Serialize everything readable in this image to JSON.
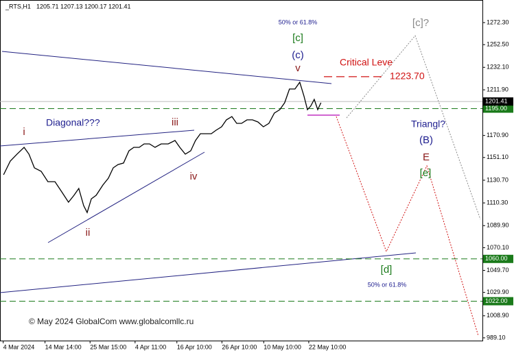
{
  "chart_data": {
    "type": "line",
    "title": "_RTS,H1",
    "ohlc_header": [
      "1205.71",
      "1207.13",
      "1200.17",
      "1201.41"
    ],
    "copyright": "© May 2024 GlobalCom www.globalcomllc.ru",
    "series": [
      {
        "color": "#000000",
        "x": [
          1.1,
          3.2,
          5.3,
          7.5,
          9.0,
          10.7,
          12.8,
          14.9,
          17.1,
          19.2,
          21.3,
          23.0,
          24.5,
          26.0,
          27.1,
          28.4,
          29.9,
          32.0,
          33.7,
          35.2,
          36.7,
          38.4,
          40.1,
          41.6,
          43.3,
          44.8,
          46.5,
          48.2,
          50.1,
          52.3,
          54.4,
          55.9,
          57.6,
          59.3,
          60.8,
          62.3,
          64.0,
          65.7,
          67.2,
          68.9,
          70.4,
          72.1,
          73.6,
          75.1,
          76.8,
          78.5,
          80.2,
          81.9,
          83.6,
          85.3,
          87.0,
          88.5,
          90.0,
          91.7,
          93.2,
          94.5,
          95.6,
          96.6,
          97.7,
          98.8,
          99.8
        ],
        "values": [
          1135.6,
          1147.9,
          1154.1,
          1160.2,
          1154.1,
          1141.8,
          1138.7,
          1129.4,
          1129.4,
          1120.2,
          1111.0,
          1117.1,
          1123.3,
          1107.9,
          1101.7,
          1114.0,
          1117.1,
          1126.4,
          1132.5,
          1141.8,
          1144.8,
          1146.1,
          1157.1,
          1160.2,
          1160.2,
          1163.3,
          1163.3,
          1160.2,
          1163.3,
          1163.3,
          1166.4,
          1160.2,
          1154.1,
          1157.1,
          1166.4,
          1172.5,
          1172.5,
          1172.5,
          1175.6,
          1178.7,
          1184.9,
          1187.9,
          1181.8,
          1181.8,
          1184.9,
          1184.9,
          1183.0,
          1178.7,
          1181.8,
          1191.0,
          1194.1,
          1200.3,
          1212.6,
          1212.6,
          1218.7,
          1206.4,
          1194.1,
          1197.2,
          1203.3,
          1194.1,
          1200.3
        ]
      }
    ],
    "xlim": [
      0,
      150
    ],
    "xticks": [
      {
        "value": 1,
        "label": "4 Mar 2024"
      },
      {
        "value": 14,
        "label": "14 Mar 14:00"
      },
      {
        "value": 28,
        "label": "25 Mar 15:00"
      },
      {
        "value": 42,
        "label": "4 Apr 11:00"
      },
      {
        "value": 55,
        "label": "16 Apr 10:00"
      },
      {
        "value": 69,
        "label": "26 Apr 10:00"
      },
      {
        "value": 82,
        "label": "10 May 10:00"
      },
      {
        "value": 96,
        "label": "22 May 10:00"
      }
    ],
    "ylim": [
      986.6,
      1292.6
    ],
    "yticks": [
      {
        "value": 1272.3,
        "label": "1272.30"
      },
      {
        "value": 1252.5,
        "label": "1252.50"
      },
      {
        "value": 1232.1,
        "label": "1232.10"
      },
      {
        "value": 1211.9,
        "label": "1211.90"
      },
      {
        "value": 1170.9,
        "label": "1170.90"
      },
      {
        "value": 1151.1,
        "label": "1151.10"
      },
      {
        "value": 1130.7,
        "label": "1130.70"
      },
      {
        "value": 1110.3,
        "label": "1110.30"
      },
      {
        "value": 1089.9,
        "label": "1089.90"
      },
      {
        "value": 1070.1,
        "label": "1070.10"
      },
      {
        "value": 1049.7,
        "label": "1049.70"
      },
      {
        "value": 1029.9,
        "label": "1029.90"
      },
      {
        "value": 1008.9,
        "label": "1008.90"
      },
      {
        "value": 989.1,
        "label": "989.10"
      }
    ],
    "last_price": {
      "value": 1201.41,
      "label": "1201.41"
    },
    "levels": [
      {
        "value": 1195,
        "label": "1195.00"
      },
      {
        "value": 1060,
        "label": "1060.00"
      },
      {
        "value": 1022,
        "label": "1022.00"
      }
    ],
    "level_color": "#1a7a1a",
    "critical": {
      "value": 1223.7,
      "label": "1223.70",
      "text": "Critical Leve",
      "color": "#d01010"
    },
    "annotations": [
      "i",
      "ii",
      "iii",
      "iv",
      "v",
      "Diagonal???",
      "50% or 61.8%",
      "[c]",
      "(c)",
      "[c]?",
      "Triangl?",
      "(B)",
      "E",
      "[e]",
      "[d]",
      "50% or 61.8%"
    ]
  }
}
